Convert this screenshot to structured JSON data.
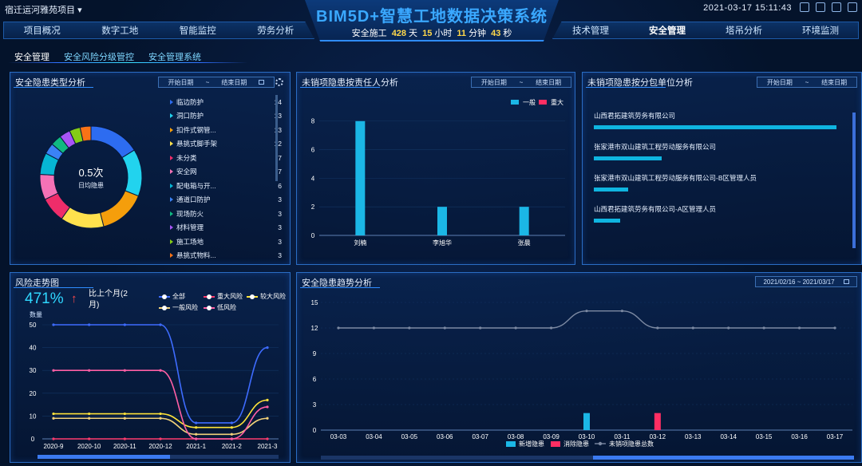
{
  "header": {
    "project": "宿迁运河雅苑项目",
    "title": "BIM5D+智慧工地数据决策系统",
    "safe_prefix": "安全施工",
    "safe_days": "428",
    "safe_days_unit": "天",
    "safe_hours": "15",
    "safe_hours_unit": "小时",
    "safe_minutes": "11",
    "safe_minutes_unit": "分钟",
    "safe_seconds": "43",
    "safe_seconds_unit": "秒",
    "datetime": "2021-03-17 15:11:43"
  },
  "nav_left": [
    "项目概况",
    "数字工地",
    "智能监控",
    "劳务分析"
  ],
  "nav_right": [
    "技术管理",
    "安全管理",
    "塔吊分析",
    "环境监测"
  ],
  "breadcrumb": [
    "安全管理",
    "安全风险分级管控",
    "安全管理系统"
  ],
  "panels": {
    "hazard_type": {
      "title": "安全隐患类型分析",
      "date_start": "开始日期",
      "date_sep": "~",
      "date_end": "结束日期",
      "center_value": "0.5次",
      "center_label": "日均隐患",
      "items": [
        {
          "label": "临边防护",
          "value": "14"
        },
        {
          "label": "洞口防护",
          "value": "13"
        },
        {
          "label": "扣件式钢管...",
          "value": "13"
        },
        {
          "label": "悬挑式脚手架",
          "value": "12"
        },
        {
          "label": "未分类",
          "value": "7"
        },
        {
          "label": "安全网",
          "value": "7"
        },
        {
          "label": "配电箱与开...",
          "value": "6"
        },
        {
          "label": "通道口防护",
          "value": "3"
        },
        {
          "label": "现场防火",
          "value": "3"
        },
        {
          "label": "材料管理",
          "value": "3"
        },
        {
          "label": "施工场地",
          "value": "3"
        },
        {
          "label": "悬挑式物料...",
          "value": "3"
        }
      ]
    },
    "responsible": {
      "title": "未销项隐患按责任人分析",
      "date_start": "开始日期",
      "date_sep": "~",
      "date_end": "结束日期",
      "legend": [
        "一般",
        "重大"
      ]
    },
    "subcontractor": {
      "title": "未销项隐患按分包单位分析",
      "date_start": "开始日期",
      "date_sep": "~",
      "date_end": "结束日期",
      "units": [
        "山西君拓建筑劳务有限公司",
        "张家港市双山建筑工程劳动服务有限公司",
        "张家港市双山建筑工程劳动服务有限公司-B区管理人员",
        "山西君拓建筑劳务有限公司-A区管理人员"
      ],
      "unit_values": [
        1.0,
        0.28,
        0.14,
        0.11
      ]
    },
    "risk_trend": {
      "title": "风险走势图",
      "percent": "471%",
      "compare": "比上个月(2月)",
      "qty_label": "数量",
      "legend": [
        "全部",
        "重大风险",
        "较大风险",
        "一般风险",
        "低风险"
      ]
    },
    "hazard_trend": {
      "title": "安全隐患趋势分析",
      "date_range": "2021/02/16  ~  2021/03/17",
      "legend": [
        "新增隐患",
        "消除隐患",
        "未销项隐患总数"
      ]
    }
  },
  "colors": {
    "accent": "#2f8cff",
    "bar_general": "#1bb7e6",
    "bar_major": "#ff2e63",
    "series_all": "#3e6cff",
    "series_major": "#ff3c6e",
    "series_large": "#ffe33a",
    "series_general": "#f2d27a",
    "series_low": "#ff5fa5"
  },
  "chart_data": [
    {
      "type": "pie",
      "labels": [
        "临边防护",
        "洞口防护",
        "扣件式钢管...",
        "悬挑式脚手架",
        "未分类",
        "安全网",
        "配电箱与开...",
        "通道口防护",
        "现场防火",
        "材料管理",
        "施工场地",
        "悬挑式物料..."
      ],
      "values": [
        14,
        13,
        13,
        12,
        7,
        7,
        6,
        3,
        3,
        3,
        3,
        3
      ],
      "colors": [
        "#2d6cf0",
        "#22d3ee",
        "#f59e0b",
        "#ffe14d",
        "#ef2d6a",
        "#f472b6",
        "#06b6d4",
        "#3b82f6",
        "#10b981",
        "#a855f7",
        "#84cc16",
        "#f97316"
      ]
    },
    {
      "type": "bar",
      "categories": [
        "刘楠",
        "李旭华",
        "张晨"
      ],
      "series": [
        {
          "name": "一般",
          "values": [
            8,
            2,
            2
          ]
        },
        {
          "name": "重大",
          "values": [
            0,
            0,
            0
          ]
        }
      ],
      "yticks": [
        0,
        2,
        4,
        6,
        8
      ],
      "ylim": [
        0,
        8.6
      ]
    },
    {
      "type": "line",
      "categories": [
        "2020-9",
        "2020-10",
        "2020-11",
        "2020-12",
        "2021-1",
        "2021-2",
        "2021-3"
      ],
      "series": [
        {
          "name": "全部",
          "values": [
            50,
            50,
            50,
            50,
            7,
            7,
            40
          ]
        },
        {
          "name": "重大风险",
          "values": [
            0,
            0,
            0,
            0,
            0,
            0,
            0
          ]
        },
        {
          "name": "较大风险",
          "values": [
            11,
            11,
            11,
            11,
            5,
            5,
            17
          ]
        },
        {
          "name": "一般风险",
          "values": [
            9,
            9,
            9,
            9,
            2,
            2,
            9
          ]
        },
        {
          "name": "低风险",
          "values": [
            30,
            30,
            30,
            30,
            0,
            0,
            14
          ]
        }
      ],
      "yticks": [
        0,
        10,
        20,
        30,
        40,
        50
      ],
      "ylim": [
        0,
        52
      ]
    },
    {
      "type": "bar",
      "categories": [
        "03-03",
        "03-04",
        "03-05",
        "03-06",
        "03-07",
        "03-08",
        "03-09",
        "03-10",
        "03-11",
        "03-12",
        "03-13",
        "03-14",
        "03-15",
        "03-16",
        "03-17"
      ],
      "series": [
        {
          "name": "新增隐患",
          "values": [
            0,
            0,
            0,
            0,
            0,
            0,
            0,
            2,
            0,
            0,
            0,
            0,
            0,
            0,
            0
          ]
        },
        {
          "name": "消除隐患",
          "values": [
            0,
            0,
            0,
            0,
            0,
            0,
            0,
            0,
            0,
            2,
            0,
            0,
            0,
            0,
            0
          ]
        },
        {
          "name": "未销项隐患总数",
          "values": [
            12,
            12,
            12,
            12,
            12,
            12,
            12,
            14,
            14,
            12,
            12,
            12,
            12,
            12,
            12
          ]
        }
      ],
      "yticks": [
        0,
        3,
        6,
        9,
        12,
        15
      ],
      "ylim": [
        0,
        15
      ]
    }
  ]
}
